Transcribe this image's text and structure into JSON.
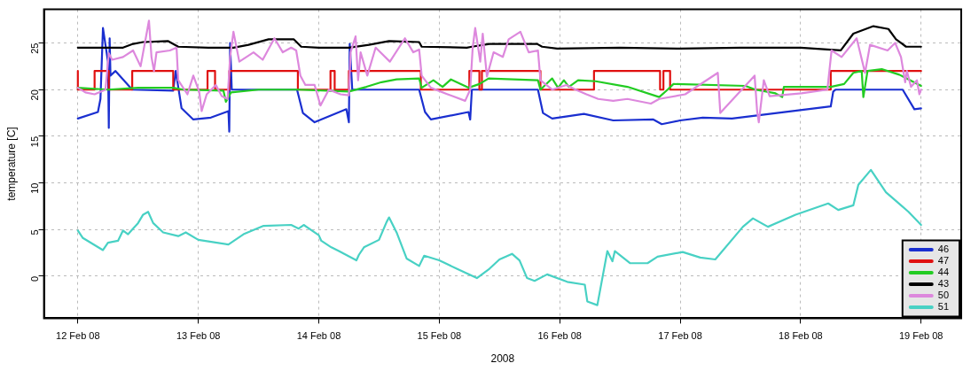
{
  "chart_data": {
    "type": "line",
    "xlabel": "2008",
    "ylabel": "temperature [C]",
    "xlim": [
      "2008-02-11T17:15",
      "2008-02-19T08:00"
    ],
    "xticks": [
      {
        "value": "2008-02-12",
        "label": "12 Feb 08"
      },
      {
        "value": "2008-02-13",
        "label": "13 Feb 08"
      },
      {
        "value": "2008-02-14",
        "label": "14 Feb 08"
      },
      {
        "value": "2008-02-15",
        "label": "15 Feb 08"
      },
      {
        "value": "2008-02-16",
        "label": "16 Feb 08"
      },
      {
        "value": "2008-02-17",
        "label": "17 Feb 08"
      },
      {
        "value": "2008-02-18",
        "label": "18 Feb 08"
      },
      {
        "value": "2008-02-19",
        "label": "19 Feb 08"
      }
    ],
    "ylim": [
      -4.5,
      28.6
    ],
    "yticks": [
      0,
      5,
      10,
      15,
      20,
      25
    ],
    "grid": true,
    "legend": "bottom right",
    "marker": "none",
    "line_style": "solid",
    "series": [
      {
        "name": "46",
        "color": "#1a2fd0",
        "x": [
          "2008-02-12T00:00",
          "2008-02-12T04:00",
          "2008-02-12T04:30",
          "2008-02-12T05:00",
          "2008-02-12T06:00",
          "2008-02-12T06:10",
          "2008-02-12T06:20",
          "2008-02-12T06:30",
          "2008-02-12T07:30",
          "2008-02-12T10:50",
          "2008-02-12T19:00",
          "2008-02-12T19:30",
          "2008-02-12T20:40",
          "2008-02-12T23:00",
          "2008-02-13T02:30",
          "2008-02-13T06:00",
          "2008-02-13T06:10",
          "2008-02-13T06:20",
          "2008-02-13T06:40",
          "2008-02-13T19:40",
          "2008-02-13T20:50",
          "2008-02-13T23:10",
          "2008-02-14T05:30",
          "2008-02-14T06:00",
          "2008-02-14T06:10",
          "2008-02-14T06:40",
          "2008-02-14T20:00",
          "2008-02-14T21:10",
          "2008-02-14T22:20",
          "2008-02-15T05:50",
          "2008-02-15T06:10",
          "2008-02-15T06:30",
          "2008-02-15T19:40",
          "2008-02-15T20:40",
          "2008-02-15T22:30",
          "2008-02-16T04:50",
          "2008-02-16T10:40",
          "2008-02-16T18:40",
          "2008-02-16T20:20",
          "2008-02-17T00:00",
          "2008-02-17T04:30",
          "2008-02-17T10:20",
          "2008-02-18T06:00",
          "2008-02-18T06:30",
          "2008-02-18T07:00",
          "2008-02-18T20:20",
          "2008-02-18T22:40",
          "2008-02-19T00:00"
        ],
        "values": [
          16.9,
          17.6,
          19.0,
          26.6,
          23.0,
          15.9,
          25.5,
          21.5,
          22.0,
          20.0,
          19.9,
          22.0,
          18.0,
          16.8,
          17.0,
          17.7,
          15.5,
          25.0,
          20.0,
          20.0,
          17.5,
          16.5,
          17.9,
          16.5,
          24.9,
          20.0,
          20.0,
          17.6,
          16.8,
          17.6,
          16.8,
          20.0,
          20.0,
          17.5,
          16.9,
          17.4,
          16.7,
          16.8,
          16.3,
          16.7,
          17.0,
          16.9,
          18.2,
          19.8,
          20.0,
          20.0,
          17.9,
          18.0
        ]
      },
      {
        "name": "47",
        "color": "#e01010",
        "type": "step",
        "x": [
          "2008-02-12T00:00",
          "2008-02-12T03:20",
          "2008-02-12T06:10",
          "2008-02-12T10:50",
          "2008-02-12T19:00",
          "2008-02-13T01:50",
          "2008-02-13T03:20",
          "2008-02-13T06:10",
          "2008-02-13T19:50",
          "2008-02-14T02:20",
          "2008-02-14T03:10",
          "2008-02-14T06:00",
          "2008-02-14T20:20",
          "2008-02-15T06:00",
          "2008-02-15T08:00",
          "2008-02-15T08:30",
          "2008-02-15T20:10",
          "2008-02-16T06:50",
          "2008-02-16T20:00",
          "2008-02-16T20:40",
          "2008-02-16T22:00",
          "2008-02-18T06:00",
          "2008-02-18T20:10",
          "2008-02-19T00:00"
        ],
        "values": [
          22,
          20,
          22,
          20,
          22,
          20,
          22,
          20,
          22,
          20,
          22,
          20,
          22,
          20,
          22,
          20,
          22,
          20,
          22,
          20,
          22,
          20,
          22,
          22
        ]
      },
      {
        "name": "44",
        "color": "#22cc22",
        "x": [
          "2008-02-12T00:00",
          "2008-02-12T06:00",
          "2008-02-12T12:00",
          "2008-02-12T19:00",
          "2008-02-12T21:00",
          "2008-02-13T05:00",
          "2008-02-13T05:30",
          "2008-02-13T06:30",
          "2008-02-13T12:00",
          "2008-02-13T20:00",
          "2008-02-14T06:00",
          "2008-02-14T09:30",
          "2008-02-14T12:30",
          "2008-02-14T15:30",
          "2008-02-14T20:00",
          "2008-02-14T20:30",
          "2008-02-14T22:50",
          "2008-02-15T00:40",
          "2008-02-15T02:20",
          "2008-02-15T05:50",
          "2008-02-15T08:00",
          "2008-02-15T09:50",
          "2008-02-15T19:40",
          "2008-02-15T20:10",
          "2008-02-15T22:30",
          "2008-02-15T23:40",
          "2008-02-16T00:50",
          "2008-02-16T01:50",
          "2008-02-16T03:40",
          "2008-02-16T07:10",
          "2008-02-16T13:30",
          "2008-02-16T19:50",
          "2008-02-16T21:30",
          "2008-02-16T22:40",
          "2008-02-17T13:00",
          "2008-02-17T15:00",
          "2008-02-17T19:00",
          "2008-02-17T20:20",
          "2008-02-17T20:40",
          "2008-02-18T06:00",
          "2008-02-18T08:40",
          "2008-02-18T10:30",
          "2008-02-18T12:10",
          "2008-02-18T12:30",
          "2008-02-18T13:20",
          "2008-02-18T16:10",
          "2008-02-18T19:40",
          "2008-02-19T00:00"
        ],
        "values": [
          20.2,
          20.0,
          20.2,
          20.2,
          20.0,
          19.9,
          18.7,
          19.7,
          20.0,
          20.0,
          19.8,
          20.3,
          20.8,
          21.1,
          21.2,
          20.2,
          21.0,
          20.3,
          21.1,
          20.2,
          20.6,
          21.2,
          21.0,
          20.0,
          21.2,
          20.2,
          21.0,
          20.3,
          21.0,
          20.9,
          20.3,
          19.2,
          20.0,
          20.6,
          20.4,
          20.0,
          19.6,
          19.2,
          20.3,
          20.3,
          20.6,
          21.8,
          22.0,
          19.2,
          22.0,
          22.2,
          21.6,
          20.4
        ]
      },
      {
        "name": "43",
        "color": "#000000",
        "x": [
          "2008-02-12T00:00",
          "2008-02-12T09:00",
          "2008-02-12T11:00",
          "2008-02-12T13:00",
          "2008-02-12T18:00",
          "2008-02-12T20:00",
          "2008-02-13T02:00",
          "2008-02-13T07:00",
          "2008-02-13T10:00",
          "2008-02-13T14:00",
          "2008-02-13T19:00",
          "2008-02-13T20:30",
          "2008-02-14T00:00",
          "2008-02-14T06:00",
          "2008-02-14T10:00",
          "2008-02-14T14:00",
          "2008-02-14T20:00",
          "2008-02-14T20:30",
          "2008-02-15T05:30",
          "2008-02-15T06:30",
          "2008-02-15T10:00",
          "2008-02-15T19:30",
          "2008-02-15T20:30",
          "2008-02-15T23:30",
          "2008-02-16T12:00",
          "2008-02-17T00:00",
          "2008-02-17T12:00",
          "2008-02-18T00:00",
          "2008-02-18T08:00",
          "2008-02-18T10:30",
          "2008-02-18T14:30",
          "2008-02-18T17:30",
          "2008-02-18T19:00",
          "2008-02-18T21:00",
          "2008-02-19T00:00"
        ],
        "values": [
          24.5,
          24.5,
          24.9,
          25.1,
          25.2,
          24.6,
          24.5,
          24.5,
          24.8,
          25.4,
          25.4,
          24.6,
          24.5,
          24.5,
          24.8,
          25.2,
          25.1,
          24.6,
          24.5,
          24.6,
          24.9,
          24.9,
          24.6,
          24.4,
          24.5,
          24.4,
          24.5,
          24.5,
          24.2,
          26.0,
          26.8,
          26.5,
          25.4,
          24.6,
          24.6
        ]
      },
      {
        "name": "50",
        "color": "#dd88dd",
        "x": [
          "2008-02-12T00:00",
          "2008-02-12T01:30",
          "2008-02-12T03:20",
          "2008-02-12T05:30",
          "2008-02-12T06:10",
          "2008-02-12T06:50",
          "2008-02-12T09:00",
          "2008-02-12T11:00",
          "2008-02-12T12:30",
          "2008-02-12T14:10",
          "2008-02-12T14:40",
          "2008-02-12T15:10",
          "2008-02-12T15:40",
          "2008-02-12T18:20",
          "2008-02-12T19:40",
          "2008-02-12T20:00",
          "2008-02-12T21:50",
          "2008-02-12T23:00",
          "2008-02-13T00:10",
          "2008-02-13T00:40",
          "2008-02-13T01:40",
          "2008-02-13T03:30",
          "2008-02-13T04:40",
          "2008-02-13T05:50",
          "2008-02-13T06:20",
          "2008-02-13T07:00",
          "2008-02-13T08:10",
          "2008-02-13T11:00",
          "2008-02-13T12:50",
          "2008-02-13T15:10",
          "2008-02-13T16:50",
          "2008-02-13T18:30",
          "2008-02-13T19:30",
          "2008-02-13T20:20",
          "2008-02-13T21:20",
          "2008-02-13T23:10",
          "2008-02-14T00:20",
          "2008-02-14T02:00",
          "2008-02-14T04:20",
          "2008-02-14T06:00",
          "2008-02-14T06:20",
          "2008-02-14T07:20",
          "2008-02-14T07:50",
          "2008-02-14T08:20",
          "2008-02-14T09:40",
          "2008-02-14T11:20",
          "2008-02-14T14:10",
          "2008-02-14T17:10",
          "2008-02-14T18:50",
          "2008-02-14T20:00",
          "2008-02-14T20:30",
          "2008-02-14T22:20",
          "2008-02-15T01:40",
          "2008-02-15T05:10",
          "2008-02-15T06:10",
          "2008-02-15T06:40",
          "2008-02-15T07:10",
          "2008-02-15T08:10",
          "2008-02-15T08:40",
          "2008-02-15T09:30",
          "2008-02-15T10:50",
          "2008-02-15T12:40",
          "2008-02-15T13:50",
          "2008-02-15T16:10",
          "2008-02-15T17:50",
          "2008-02-15T19:40",
          "2008-02-15T20:10",
          "2008-02-15T22:30",
          "2008-02-16T01:20",
          "2008-02-16T03:10",
          "2008-02-16T05:20",
          "2008-02-16T07:40",
          "2008-02-16T10:40",
          "2008-02-16T13:30",
          "2008-02-16T18:10",
          "2008-02-16T19:50",
          "2008-02-17T01:00",
          "2008-02-17T07:30",
          "2008-02-17T08:00",
          "2008-02-17T14:50",
          "2008-02-17T15:20",
          "2008-02-17T15:40",
          "2008-02-17T16:40",
          "2008-02-17T17:50",
          "2008-02-18T00:10",
          "2008-02-18T05:20",
          "2008-02-18T06:10",
          "2008-02-18T08:10",
          "2008-02-18T11:10",
          "2008-02-18T12:50",
          "2008-02-18T13:50",
          "2008-02-18T17:20",
          "2008-02-18T18:50",
          "2008-02-18T20:00",
          "2008-02-18T20:50",
          "2008-02-18T21:10",
          "2008-02-18T22:00",
          "2008-02-18T23:10",
          "2008-02-18T23:40",
          "2008-02-19T00:00"
        ],
        "values": [
          20.2,
          19.7,
          19.5,
          20.0,
          23.9,
          23.2,
          23.5,
          24.2,
          22.5,
          27.4,
          23.5,
          22.0,
          24.0,
          24.2,
          24.5,
          21.0,
          19.5,
          21.5,
          19.8,
          17.7,
          19.5,
          20.5,
          19.3,
          19.0,
          23.5,
          26.2,
          23.0,
          24.0,
          23.2,
          25.5,
          24.0,
          24.5,
          24.2,
          21.5,
          20.5,
          20.5,
          18.3,
          20.0,
          19.5,
          19.4,
          24.0,
          25.7,
          21.0,
          24.0,
          21.5,
          24.5,
          23.0,
          25.5,
          24.0,
          24.3,
          21.5,
          20.2,
          19.5,
          18.8,
          20.0,
          24.5,
          26.6,
          23.0,
          26.0,
          21.4,
          24.0,
          23.5,
          25.4,
          26.2,
          24.0,
          24.2,
          21.0,
          20.0,
          20.5,
          20.0,
          19.5,
          19.0,
          18.8,
          19.0,
          18.5,
          19.0,
          19.5,
          21.8,
          17.5,
          21.5,
          17.7,
          16.5,
          21.0,
          19.3,
          19.6,
          20.0,
          24.2,
          23.5,
          25.5,
          21.8,
          24.8,
          24.2,
          25.0,
          23.5,
          20.8,
          22.0,
          20.3,
          21.0,
          19.5,
          20.0
        ]
      },
      {
        "name": "51",
        "color": "#48d1c4",
        "x": [
          "2008-02-12T00:00",
          "2008-02-12T01:00",
          "2008-02-12T05:00",
          "2008-02-12T06:00",
          "2008-02-12T08:00",
          "2008-02-12T09:00",
          "2008-02-12T10:00",
          "2008-02-12T12:00",
          "2008-02-12T13:00",
          "2008-02-12T14:00",
          "2008-02-12T15:00",
          "2008-02-12T17:00",
          "2008-02-12T20:00",
          "2008-02-12T21:30",
          "2008-02-13T00:00",
          "2008-02-13T06:00",
          "2008-02-13T09:00",
          "2008-02-13T13:00",
          "2008-02-13T18:30",
          "2008-02-13T20:00",
          "2008-02-13T21:00",
          "2008-02-14T00:00",
          "2008-02-14T00:30",
          "2008-02-14T02:30",
          "2008-02-14T04:00",
          "2008-02-14T07:30",
          "2008-02-14T08:00",
          "2008-02-14T09:00",
          "2008-02-14T12:00",
          "2008-02-14T13:30",
          "2008-02-14T14:00",
          "2008-02-14T15:30",
          "2008-02-14T17:30",
          "2008-02-14T20:00",
          "2008-02-14T21:00",
          "2008-02-15T00:00",
          "2008-02-15T03:30",
          "2008-02-15T07:30",
          "2008-02-15T10:00",
          "2008-02-15T12:00",
          "2008-02-15T14:30",
          "2008-02-15T16:00",
          "2008-02-15T17:30",
          "2008-02-15T19:00",
          "2008-02-15T21:30",
          "2008-02-16T01:30",
          "2008-02-16T05:00",
          "2008-02-16T05:30",
          "2008-02-16T07:30",
          "2008-02-16T09:30",
          "2008-02-16T10:30",
          "2008-02-16T11:00",
          "2008-02-16T14:00",
          "2008-02-16T17:30",
          "2008-02-16T19:30",
          "2008-02-17T00:30",
          "2008-02-17T04:00",
          "2008-02-17T07:00",
          "2008-02-17T12:30",
          "2008-02-17T14:30",
          "2008-02-17T17:30",
          "2008-02-17T23:00",
          "2008-02-18T05:30",
          "2008-02-18T07:30",
          "2008-02-18T10:30",
          "2008-02-18T11:30",
          "2008-02-18T14:00",
          "2008-02-18T17:00",
          "2008-02-18T21:30",
          "2008-02-19T00:00"
        ],
        "values": [
          4.9,
          4.1,
          2.8,
          3.6,
          3.8,
          4.9,
          4.5,
          5.7,
          6.6,
          6.9,
          5.7,
          4.7,
          4.3,
          4.7,
          3.9,
          3.4,
          4.5,
          5.4,
          5.5,
          5.1,
          5.5,
          4.4,
          3.8,
          3.1,
          2.7,
          1.7,
          2.3,
          3.1,
          3.9,
          5.8,
          6.3,
          4.7,
          1.9,
          1.1,
          2.2,
          1.7,
          0.8,
          -0.2,
          0.8,
          1.8,
          2.4,
          1.7,
          -0.2,
          -0.5,
          0.2,
          -0.6,
          -0.9,
          -2.7,
          -3.1,
          2.7,
          1.6,
          2.7,
          1.4,
          1.4,
          2.1,
          2.6,
          2.0,
          1.8,
          5.3,
          6.2,
          5.3,
          6.6,
          7.8,
          7.1,
          7.6,
          9.8,
          11.4,
          9.0,
          6.9,
          5.5
        ]
      }
    ]
  }
}
